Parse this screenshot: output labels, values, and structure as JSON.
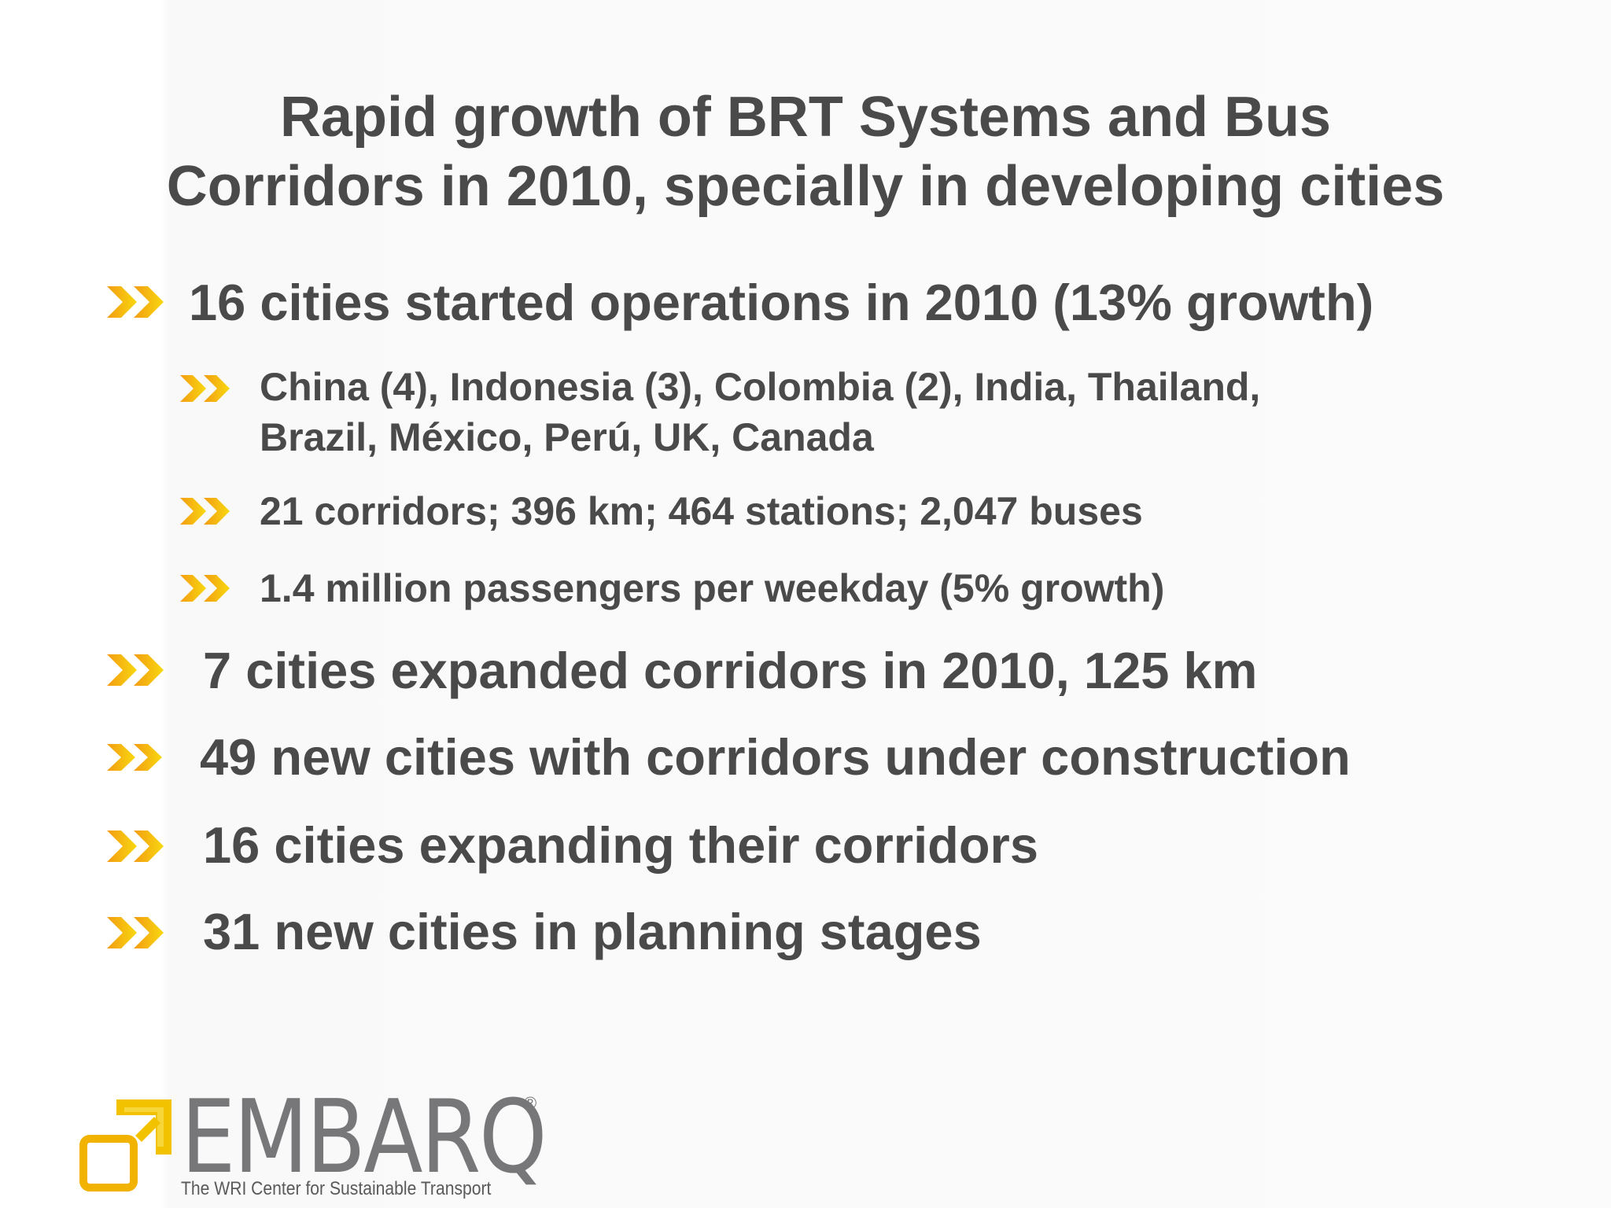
{
  "title": {
    "line1": "Rapid growth of BRT Systems and Bus",
    "line2": "Corridors in 2010, specially in developing cities"
  },
  "bullets": [
    {
      "text": "16 cities started operations in 2010 (13% growth)",
      "level": 1
    },
    {
      "text": "China (4), Indonesia (3), Colombia (2), India, Thailand,",
      "text2": "Brazil,  México, Perú, UK, Canada",
      "level": 2
    },
    {
      "text": "21 corridors; 396 km; 464 stations; 2,047 buses",
      "level": 2
    },
    {
      "text": "1.4 million passengers per weekday (5% growth)",
      "level": 2
    },
    {
      "text": "7 cities expanded corridors in 2010, 125 km",
      "level": 1
    },
    {
      "text": "49 new cities with corridors under construction",
      "level": 1
    },
    {
      "text": "16 cities expanding their corridors",
      "level": 1
    },
    {
      "text": "31 new cities in planning stages",
      "level": 1
    }
  ],
  "bullet_icon": "double-chevron-icon",
  "logo": {
    "name": "EMBARQ",
    "registered": "®",
    "tagline": "The WRI Center for Sustainable Transport"
  },
  "colors": {
    "text": "#4a4a4a",
    "chevron_orange": "#f5a623",
    "chevron_yellow": "#f7d116",
    "logo_gray": "#77777a",
    "logo_yellow": "#f2c200"
  }
}
